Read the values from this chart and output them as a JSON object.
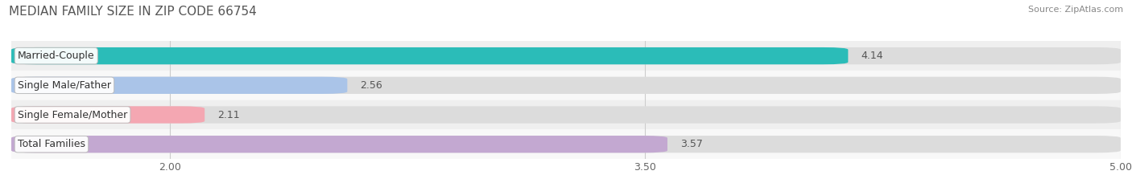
{
  "title": "MEDIAN FAMILY SIZE IN ZIP CODE 66754",
  "source": "Source: ZipAtlas.com",
  "categories": [
    "Married-Couple",
    "Single Male/Father",
    "Single Female/Mother",
    "Total Families"
  ],
  "values": [
    4.14,
    2.56,
    2.11,
    3.57
  ],
  "bar_colors": [
    "#2bbcb8",
    "#aac4e8",
    "#f4a7b2",
    "#c3a8d1"
  ],
  "xmin": 1.5,
  "xmax": 5.0,
  "xticks": [
    2.0,
    3.5,
    5.0
  ],
  "tick_labels": [
    "2.00",
    "3.50",
    "5.00"
  ],
  "title_fontsize": 11,
  "source_fontsize": 8,
  "bar_label_fontsize": 9,
  "category_fontsize": 9,
  "value_fontsize": 9,
  "bar_height": 0.58,
  "row_bg_colors": [
    "#efefef",
    "#f8f8f8",
    "#efefef",
    "#f8f8f8"
  ],
  "grid_color": "#cccccc",
  "fig_bg_color": "#ffffff"
}
